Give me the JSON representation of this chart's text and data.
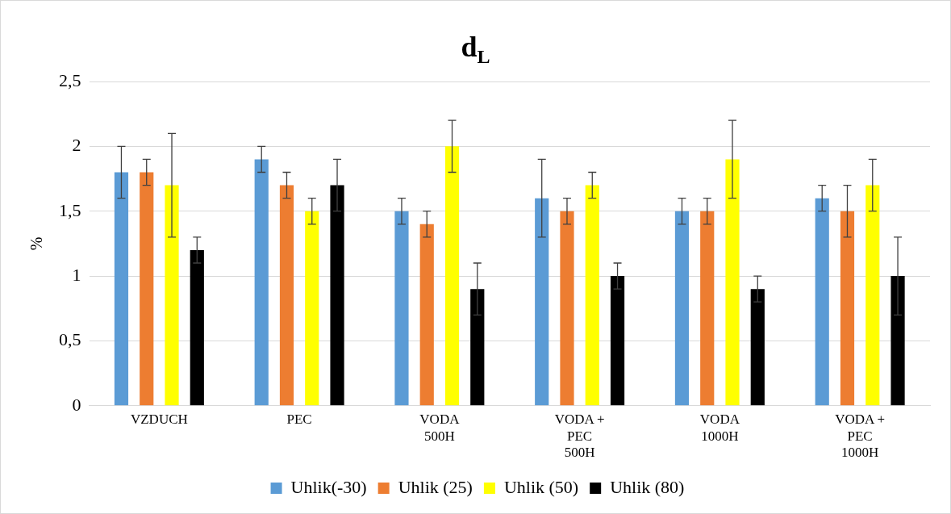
{
  "chart_data": {
    "type": "bar",
    "title": "d$_{L}$",
    "ylabel": "%",
    "categories": [
      "VZDUCH",
      "PEC",
      "VODA\n500H",
      "VODA +\nPEC\n500H",
      "VODA\n1000H",
      "VODA +\nPEC\n1000H"
    ],
    "series": [
      {
        "name": "Uhlik(-30)",
        "color": "#5b9bd5",
        "values": [
          1.8,
          1.9,
          1.5,
          1.6,
          1.5,
          1.6
        ],
        "errors": [
          0.2,
          0.1,
          0.1,
          0.3,
          0.1,
          0.1
        ]
      },
      {
        "name": "Uhlik (25)",
        "color": "#ed7d31",
        "values": [
          1.8,
          1.7,
          1.4,
          1.5,
          1.5,
          1.5
        ],
        "errors": [
          0.1,
          0.1,
          0.1,
          0.1,
          0.1,
          0.2
        ]
      },
      {
        "name": "Uhlik (50)",
        "color": "#ffff00",
        "values": [
          1.7,
          1.5,
          2.0,
          1.7,
          1.9,
          1.7
        ],
        "errors": [
          0.4,
          0.1,
          0.2,
          0.1,
          0.3,
          0.2
        ]
      },
      {
        "name": "Uhlik (80)",
        "color": "#000000",
        "values": [
          1.2,
          1.7,
          0.9,
          1.0,
          0.9,
          1.0
        ],
        "errors": [
          0.1,
          0.2,
          0.2,
          0.1,
          0.1,
          0.3
        ]
      }
    ],
    "ylim": [
      0,
      2.5
    ],
    "yticks": [
      0,
      {
        "value": 0.5,
        "label": "0,5"
      },
      1,
      {
        "value": 1.5,
        "label": "1,5"
      },
      2,
      {
        "value": 2.5,
        "label": "2,5"
      }
    ],
    "grid": "y",
    "legend": "bottom"
  }
}
